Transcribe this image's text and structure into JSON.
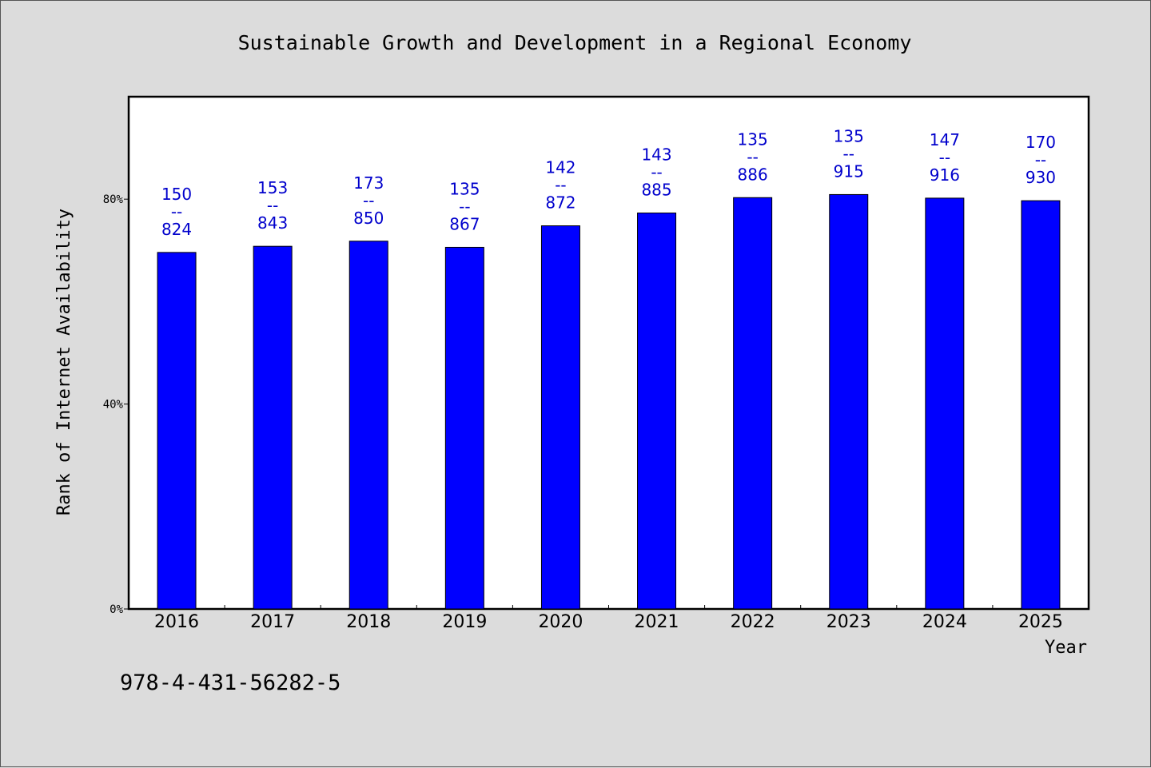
{
  "chart_data": {
    "type": "bar",
    "title": "Sustainable Growth and Development in a Regional Economy",
    "xlabel": "Year",
    "ylabel": "Rank of Internet Availability",
    "categories": [
      "2016",
      "2017",
      "2018",
      "2019",
      "2020",
      "2021",
      "2022",
      "2023",
      "2024",
      "2025"
    ],
    "values": [
      69.6,
      70.8,
      71.8,
      70.6,
      74.8,
      77.3,
      80.3,
      80.9,
      80.2,
      79.7
    ],
    "data_labels": [
      [
        "150",
        "--",
        "824"
      ],
      [
        "153",
        "--",
        "843"
      ],
      [
        "173",
        "--",
        "850"
      ],
      [
        "135",
        "--",
        "867"
      ],
      [
        "142",
        "--",
        "872"
      ],
      [
        "143",
        "--",
        "885"
      ],
      [
        "135",
        "--",
        "886"
      ],
      [
        "135",
        "--",
        "915"
      ],
      [
        "147",
        "--",
        "916"
      ],
      [
        "170",
        "--",
        "930"
      ]
    ],
    "yticks": [
      {
        "value": 0,
        "label": "0%"
      },
      {
        "value": 40,
        "label": "40%"
      },
      {
        "value": 80,
        "label": "80%"
      }
    ],
    "ylim": [
      0,
      100
    ],
    "grid": false,
    "bar_color": "#0000ff",
    "label_color": "#0000cc",
    "plot_background": "#ffffff",
    "page_background": "#dcdcdc"
  },
  "footer_text": "978-4-431-56282-5"
}
